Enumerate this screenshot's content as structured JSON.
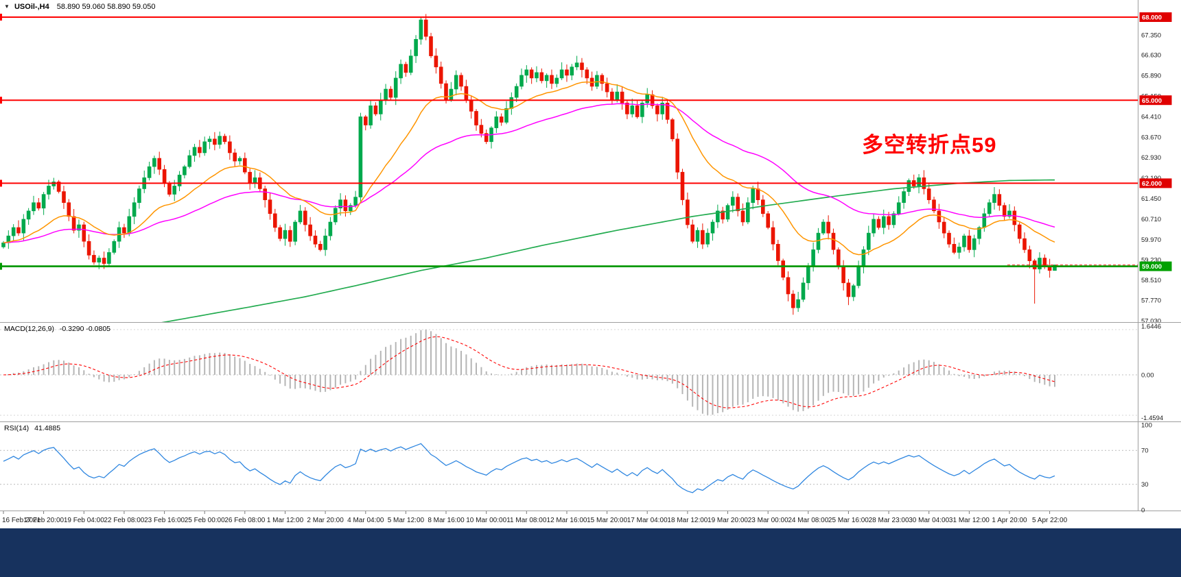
{
  "header": {
    "symbol": "USOil-,H4",
    "ohlc": "58.890 59.060 58.890 59.050"
  },
  "annotation": {
    "text": "多空转折点59",
    "color": "#ff0000"
  },
  "macd": {
    "name": "MACD(12,26,9)",
    "values": "-0.3290 -0.0805",
    "axis": [
      "1.6446",
      "0.00",
      "-1.4594"
    ]
  },
  "rsi": {
    "name": "RSI(14)",
    "value": "41.4885",
    "axis": [
      "100",
      "70",
      "30",
      "0"
    ]
  },
  "price_axis": {
    "labels": [
      "67.350",
      "66.630",
      "65.890",
      "65.150",
      "64.410",
      "63.670",
      "62.930",
      "62.190",
      "61.450",
      "60.710",
      "59.970",
      "59.230",
      "58.510",
      "57.770",
      "57.030"
    ],
    "badges": [
      {
        "text": "68.000",
        "price": 68.0,
        "type": "resistance",
        "color": "#e00000"
      },
      {
        "text": "65.000",
        "price": 65.0,
        "type": "resistance",
        "color": "#e00000"
      },
      {
        "text": "62.000",
        "price": 62.0,
        "type": "resistance",
        "color": "#e00000"
      },
      {
        "text": "59.000",
        "price": 59.0,
        "type": "support",
        "color": "#00a000"
      }
    ]
  },
  "time_axis": [
    "16 Feb 2021",
    "17 Feb 20:00",
    "19 Feb 04:00",
    "22 Feb 08:00",
    "23 Feb 16:00",
    "25 Feb 00:00",
    "26 Feb 08:00",
    "1 Mar 12:00",
    "2 Mar 20:00",
    "4 Mar 04:00",
    "5 Mar 12:00",
    "8 Mar 16:00",
    "10 Mar 00:00",
    "11 Mar 08:00",
    "12 Mar 16:00",
    "15 Mar 20:00",
    "17 Mar 04:00",
    "18 Mar 12:00",
    "19 Mar 20:00",
    "23 Mar 00:00",
    "24 Mar 08:00",
    "25 Mar 16:00",
    "28 Mar 23:00",
    "30 Mar 04:00",
    "31 Mar 12:00",
    "1 Apr 20:00",
    "5 Apr 22:00"
  ],
  "chart_data": {
    "type": "candlestick",
    "symbol": "USOil",
    "timeframe": "H4",
    "title": "USOil-,H4 58.890 59.060 58.890 59.050",
    "price_range": [
      57.03,
      68.0
    ],
    "current_price": 59.05,
    "horizontal_levels": [
      {
        "price": 68.0,
        "color": "#fe0000"
      },
      {
        "price": 65.0,
        "color": "#fe0000"
      },
      {
        "price": 62.0,
        "color": "#fe0000"
      },
      {
        "price": 59.0,
        "color": "#00a000"
      }
    ],
    "closes": [
      59.85,
      60.1,
      60.4,
      60.2,
      60.7,
      61.0,
      61.3,
      61.1,
      61.6,
      61.9,
      62.05,
      61.7,
      61.3,
      60.8,
      60.3,
      60.5,
      59.9,
      59.4,
      59.15,
      59.3,
      59.1,
      59.5,
      59.9,
      60.4,
      60.2,
      60.8,
      61.3,
      61.8,
      62.2,
      62.6,
      62.9,
      62.5,
      62.0,
      61.6,
      61.9,
      62.3,
      62.6,
      63.0,
      63.3,
      63.1,
      63.5,
      63.6,
      63.4,
      63.7,
      63.5,
      63.1,
      62.8,
      62.9,
      62.4,
      62.0,
      62.2,
      61.8,
      61.4,
      60.9,
      60.4,
      60.0,
      60.3,
      59.9,
      60.6,
      61.0,
      60.5,
      60.1,
      59.8,
      59.6,
      60.1,
      60.6,
      61.1,
      61.4,
      61.0,
      61.2,
      61.5,
      64.4,
      64.1,
      64.8,
      64.5,
      65.0,
      65.4,
      65.1,
      65.8,
      66.3,
      66.0,
      66.6,
      67.2,
      67.9,
      67.3,
      66.6,
      66.2,
      65.6,
      65.0,
      65.4,
      65.9,
      65.5,
      65.0,
      64.6,
      64.1,
      63.8,
      63.5,
      64.0,
      64.4,
      64.2,
      64.7,
      65.1,
      65.5,
      65.9,
      66.1,
      65.8,
      66.0,
      65.7,
      65.9,
      65.6,
      65.8,
      66.1,
      65.9,
      66.2,
      66.35,
      66.1,
      65.8,
      65.5,
      65.9,
      65.6,
      65.3,
      65.0,
      65.3,
      64.9,
      64.5,
      64.8,
      64.4,
      64.9,
      65.2,
      64.8,
      64.5,
      64.9,
      64.3,
      63.6,
      62.4,
      61.4,
      60.5,
      59.9,
      60.3,
      59.8,
      60.2,
      60.6,
      61.0,
      60.7,
      61.2,
      61.5,
      61.0,
      60.6,
      61.3,
      61.8,
      61.4,
      60.9,
      60.4,
      59.8,
      59.2,
      58.6,
      58.0,
      57.5,
      57.8,
      58.4,
      59.0,
      59.6,
      60.2,
      60.6,
      60.2,
      59.6,
      59.0,
      58.4,
      57.9,
      58.3,
      59.0,
      59.6,
      60.2,
      60.7,
      60.4,
      60.8,
      60.5,
      60.9,
      61.3,
      61.7,
      62.1,
      61.9,
      62.2,
      61.8,
      61.4,
      61.0,
      60.6,
      60.2,
      59.8,
      59.5,
      59.7,
      60.1,
      59.6,
      60.0,
      60.4,
      60.9,
      61.3,
      61.6,
      61.2,
      60.8,
      61.0,
      60.5,
      60.0,
      59.6,
      59.2,
      58.9,
      59.3,
      59.0,
      58.85,
      59.05
    ],
    "wick_overrides": {
      "71": {
        "low": 61.3
      },
      "83": {
        "high": 67.98
      },
      "157": {
        "low": 57.25
      },
      "168": {
        "low": 57.6
      },
      "205": {
        "low": 57.65
      },
      "209": {
        "high": 59.06,
        "low": 58.85
      }
    },
    "moving_averages": {
      "fast_period": 21,
      "mid_period": 55,
      "slow_green_anchors": [
        [
          31,
          56.95
        ],
        [
          48,
          57.5
        ],
        [
          60,
          57.9
        ],
        [
          70,
          58.3
        ],
        [
          83,
          58.85
        ],
        [
          96,
          59.3
        ],
        [
          107,
          59.75
        ],
        [
          122,
          60.3
        ],
        [
          137,
          60.8
        ],
        [
          152,
          61.2
        ],
        [
          164,
          61.5
        ],
        [
          177,
          61.8
        ],
        [
          190,
          62.0
        ],
        [
          200,
          62.1
        ],
        [
          209,
          62.12
        ]
      ]
    },
    "macd_params": [
      12,
      26,
      9
    ],
    "macd_last": {
      "main": -0.329,
      "signal": -0.0805
    },
    "macd_range": [
      -1.4594,
      1.6446
    ],
    "rsi_period": 14,
    "rsi_last": 41.4885,
    "rsi_levels": [
      70,
      30
    ],
    "colors": {
      "up": "#00a94c",
      "down": "#eb1500",
      "ma_fast": "#ff9500",
      "ma_mid": "#ff00ff",
      "ma_slow": "#22ab4f",
      "level_red": "#fe0000",
      "level_green": "#009900",
      "macd_hist": "#b5b5b5",
      "macd_signal": "#ff0000",
      "rsi_line": "#2e86e0",
      "footer_bg": "#17325e",
      "badge_red": "#e00000",
      "badge_green": "#00a000",
      "current_price_line": "#ff2a2a"
    }
  }
}
